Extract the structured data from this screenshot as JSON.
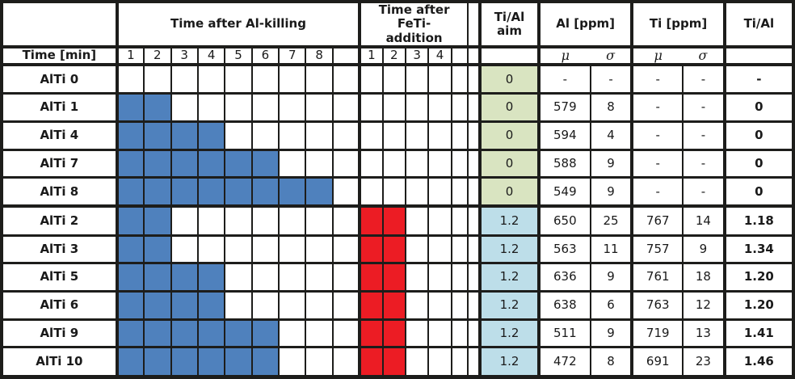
{
  "table": {
    "col_groups": {
      "al_killing": "Time after Al-killing",
      "feti_addition": "Time after\nFeTi-\naddition",
      "tial_aim": "Ti/Al\naim",
      "al_ppm": "Al [ppm]",
      "ti_ppm": "Ti [ppm]",
      "tial": "Ti/Al"
    },
    "time_label": "Time [min]",
    "al_killing_ticks": [
      "1",
      "2",
      "3",
      "4",
      "5",
      "6",
      "7",
      "8"
    ],
    "feti_ticks": [
      "1",
      "2",
      "3",
      "4"
    ],
    "stat_headers": {
      "mu": "μ",
      "sigma": "σ"
    },
    "rows": [
      {
        "label": "AlTi 0",
        "kill_minutes": 0,
        "feti_minutes": 0,
        "tial_aim": "0",
        "aim_style": "green",
        "al_mu": "-",
        "al_sigma": "-",
        "ti_mu": "-",
        "ti_sigma": "-",
        "tial": "-",
        "group_start": false
      },
      {
        "label": "AlTi 1",
        "kill_minutes": 2,
        "feti_minutes": 0,
        "tial_aim": "0",
        "aim_style": "green",
        "al_mu": "579",
        "al_sigma": "8",
        "ti_mu": "-",
        "ti_sigma": "-",
        "tial": "0",
        "group_start": false
      },
      {
        "label": "AlTi 4",
        "kill_minutes": 4,
        "feti_minutes": 0,
        "tial_aim": "0",
        "aim_style": "green",
        "al_mu": "594",
        "al_sigma": "4",
        "ti_mu": "-",
        "ti_sigma": "-",
        "tial": "0",
        "group_start": false
      },
      {
        "label": "AlTi 7",
        "kill_minutes": 6,
        "feti_minutes": 0,
        "tial_aim": "0",
        "aim_style": "green",
        "al_mu": "588",
        "al_sigma": "9",
        "ti_mu": "-",
        "ti_sigma": "-",
        "tial": "0",
        "group_start": false
      },
      {
        "label": "AlTi 8",
        "kill_minutes": 8,
        "feti_minutes": 0,
        "tial_aim": "0",
        "aim_style": "green",
        "al_mu": "549",
        "al_sigma": "9",
        "ti_mu": "-",
        "ti_sigma": "-",
        "tial": "0",
        "group_start": false
      },
      {
        "label": "AlTi 2",
        "kill_minutes": 2,
        "feti_minutes": 2,
        "tial_aim": "1.2",
        "aim_style": "blue",
        "al_mu": "650",
        "al_sigma": "25",
        "ti_mu": "767",
        "ti_sigma": "14",
        "tial": "1.18",
        "group_start": true
      },
      {
        "label": "AlTi 3",
        "kill_minutes": 2,
        "feti_minutes": 2,
        "tial_aim": "1.2",
        "aim_style": "blue",
        "al_mu": "563",
        "al_sigma": "11",
        "ti_mu": "757",
        "ti_sigma": "9",
        "tial": "1.34",
        "group_start": false
      },
      {
        "label": "AlTi 5",
        "kill_minutes": 4,
        "feti_minutes": 2,
        "tial_aim": "1.2",
        "aim_style": "blue",
        "al_mu": "636",
        "al_sigma": "9",
        "ti_mu": "761",
        "ti_sigma": "18",
        "tial": "1.20",
        "group_start": false
      },
      {
        "label": "AlTi 6",
        "kill_minutes": 4,
        "feti_minutes": 2,
        "tial_aim": "1.2",
        "aim_style": "blue",
        "al_mu": "638",
        "al_sigma": "6",
        "ti_mu": "763",
        "ti_sigma": "12",
        "tial": "1.20",
        "group_start": false
      },
      {
        "label": "AlTi 9",
        "kill_minutes": 6,
        "feti_minutes": 2,
        "tial_aim": "1.2",
        "aim_style": "blue",
        "al_mu": "511",
        "al_sigma": "9",
        "ti_mu": "719",
        "ti_sigma": "13",
        "tial": "1.41",
        "group_start": false
      },
      {
        "label": "AlTi 10",
        "kill_minutes": 6,
        "feti_minutes": 2,
        "tial_aim": "1.2",
        "aim_style": "blue",
        "al_mu": "472",
        "al_sigma": "8",
        "ti_mu": "691",
        "ti_sigma": "23",
        "tial": "1.46",
        "group_start": false
      }
    ]
  },
  "colors": {
    "kill_fill": "#4F81BD",
    "feti_fill": "#EC1C24",
    "aim_low_fill": "#D9E4C1",
    "aim_high_fill": "#BDDEE9",
    "border": "#1D1D1B",
    "text": "#1A1A1A"
  }
}
